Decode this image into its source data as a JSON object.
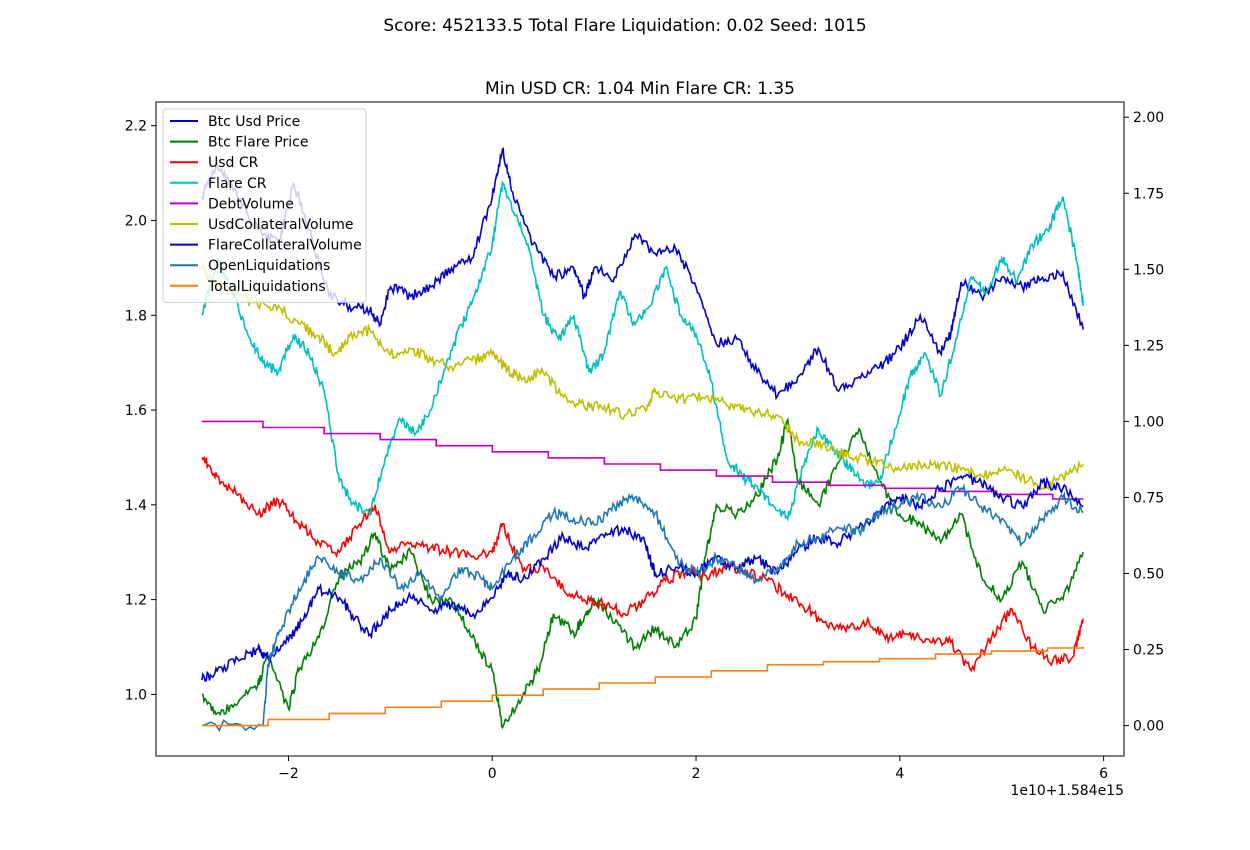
{
  "figure": {
    "suptitle": "Score: 452133.5 Total Flare Liquidation: 0.02 Seed: 1015"
  },
  "chart_data": {
    "type": "line",
    "title": "Min USD CR: 1.04 Min Flare CR: 1.35",
    "xlabel": "",
    "ylabel": "",
    "x_offset_label": "1e10+1.584e15",
    "x_ticks": [
      -2,
      0,
      2,
      4,
      6
    ],
    "x_range": [
      -3.3,
      6.2
    ],
    "left_axis": {
      "ylim": [
        0.87,
        2.25
      ],
      "ticks": [
        1.0,
        1.2,
        1.4,
        1.6,
        1.8,
        2.0,
        2.2
      ]
    },
    "right_axis": {
      "ylim": [
        -0.1,
        2.05
      ],
      "ticks": [
        0.0,
        0.25,
        0.5,
        0.75,
        1.0,
        1.25,
        1.5,
        1.75,
        2.0
      ]
    },
    "legend_position": "top-left",
    "grid": false,
    "series": [
      {
        "name": "Btc Usd Price",
        "axis": "left",
        "color": "#0000cc",
        "style": "noisy",
        "x": [
          -2.85,
          -2.7,
          -2.5,
          -2.3,
          -2.1,
          -1.95,
          -1.8,
          -1.6,
          -1.4,
          -1.2,
          -1.1,
          -1.0,
          -0.8,
          -0.6,
          -0.4,
          -0.2,
          0.0,
          0.1,
          0.2,
          0.4,
          0.6,
          0.8,
          0.9,
          1.0,
          1.2,
          1.4,
          1.6,
          1.8,
          2.0,
          2.2,
          2.4,
          2.6,
          2.8,
          3.0,
          3.2,
          3.4,
          3.6,
          3.8,
          4.0,
          4.2,
          4.4,
          4.5,
          4.6,
          4.8,
          5.0,
          5.2,
          5.4,
          5.6,
          5.8
        ],
        "y": [
          2.05,
          2.12,
          2.05,
          1.98,
          1.95,
          2.08,
          1.98,
          1.84,
          1.82,
          1.81,
          1.78,
          1.86,
          1.84,
          1.86,
          1.9,
          1.92,
          2.05,
          2.15,
          2.06,
          1.95,
          1.88,
          1.9,
          1.84,
          1.9,
          1.88,
          1.97,
          1.93,
          1.94,
          1.86,
          1.74,
          1.75,
          1.68,
          1.63,
          1.67,
          1.73,
          1.64,
          1.67,
          1.69,
          1.73,
          1.8,
          1.72,
          1.76,
          1.87,
          1.84,
          1.88,
          1.86,
          1.88,
          1.89,
          1.77
        ]
      },
      {
        "name": "Btc Flare Price",
        "axis": "left",
        "color": "#007f00",
        "style": "noisy",
        "x": [
          -2.85,
          -2.7,
          -2.5,
          -2.3,
          -2.2,
          -2.0,
          -1.9,
          -1.7,
          -1.5,
          -1.3,
          -1.15,
          -1.0,
          -0.8,
          -0.6,
          -0.4,
          -0.2,
          0.0,
          0.1,
          0.3,
          0.45,
          0.6,
          0.8,
          0.9,
          1.0,
          1.2,
          1.4,
          1.6,
          1.8,
          2.0,
          2.1,
          2.2,
          2.4,
          2.6,
          2.8,
          2.9,
          3.0,
          3.2,
          3.4,
          3.6,
          3.8,
          4.0,
          4.2,
          4.4,
          4.6,
          4.8,
          5.0,
          5.2,
          5.4,
          5.6,
          5.8
        ],
        "y": [
          1.0,
          0.96,
          0.98,
          1.02,
          1.08,
          0.97,
          1.05,
          1.12,
          1.25,
          1.28,
          1.34,
          1.26,
          1.3,
          1.2,
          1.2,
          1.12,
          1.05,
          0.93,
          1.0,
          1.05,
          1.17,
          1.13,
          1.16,
          1.2,
          1.15,
          1.1,
          1.14,
          1.1,
          1.16,
          1.3,
          1.4,
          1.38,
          1.42,
          1.5,
          1.58,
          1.45,
          1.4,
          1.49,
          1.56,
          1.45,
          1.38,
          1.36,
          1.32,
          1.38,
          1.25,
          1.2,
          1.28,
          1.18,
          1.2,
          1.3
        ]
      },
      {
        "name": "Usd CR",
        "axis": "left",
        "color": "#ff0000",
        "style": "noisy",
        "x": [
          -2.85,
          -2.7,
          -2.5,
          -2.3,
          -2.1,
          -1.9,
          -1.7,
          -1.5,
          -1.3,
          -1.15,
          -1.0,
          -0.8,
          -0.6,
          -0.4,
          -0.2,
          0.0,
          0.1,
          0.3,
          0.5,
          0.7,
          0.9,
          1.1,
          1.3,
          1.5,
          1.7,
          1.9,
          2.1,
          2.3,
          2.5,
          2.7,
          2.9,
          3.1,
          3.3,
          3.5,
          3.7,
          3.9,
          4.1,
          4.3,
          4.5,
          4.7,
          4.9,
          5.1,
          5.3,
          5.5,
          5.7,
          5.8
        ],
        "y": [
          1.5,
          1.46,
          1.42,
          1.38,
          1.41,
          1.36,
          1.32,
          1.3,
          1.36,
          1.4,
          1.3,
          1.32,
          1.31,
          1.3,
          1.29,
          1.3,
          1.36,
          1.26,
          1.27,
          1.22,
          1.2,
          1.19,
          1.17,
          1.2,
          1.24,
          1.26,
          1.25,
          1.27,
          1.26,
          1.24,
          1.21,
          1.18,
          1.14,
          1.14,
          1.15,
          1.12,
          1.13,
          1.11,
          1.11,
          1.05,
          1.12,
          1.18,
          1.1,
          1.07,
          1.08,
          1.16
        ]
      },
      {
        "name": "Flare CR",
        "axis": "left",
        "color": "#00bfbf",
        "style": "noisy",
        "x": [
          -2.85,
          -2.7,
          -2.55,
          -2.4,
          -2.25,
          -2.1,
          -1.95,
          -1.8,
          -1.65,
          -1.5,
          -1.35,
          -1.2,
          -1.05,
          -0.9,
          -0.75,
          -0.6,
          -0.45,
          -0.3,
          -0.15,
          0.0,
          0.1,
          0.2,
          0.35,
          0.5,
          0.65,
          0.8,
          0.95,
          1.1,
          1.25,
          1.4,
          1.55,
          1.7,
          1.85,
          2.0,
          2.15,
          2.3,
          2.45,
          2.6,
          2.75,
          2.9,
          3.05,
          3.2,
          3.35,
          3.5,
          3.65,
          3.8,
          3.95,
          4.1,
          4.25,
          4.4,
          4.55,
          4.7,
          4.85,
          5.0,
          5.15,
          5.3,
          5.45,
          5.6,
          5.75,
          5.8
        ],
        "y": [
          1.8,
          1.92,
          1.85,
          1.76,
          1.7,
          1.68,
          1.76,
          1.72,
          1.64,
          1.45,
          1.4,
          1.38,
          1.5,
          1.58,
          1.55,
          1.6,
          1.7,
          1.78,
          1.85,
          1.95,
          2.08,
          2.02,
          1.95,
          1.8,
          1.75,
          1.8,
          1.68,
          1.72,
          1.85,
          1.78,
          1.82,
          1.9,
          1.8,
          1.76,
          1.66,
          1.5,
          1.46,
          1.44,
          1.4,
          1.37,
          1.48,
          1.56,
          1.52,
          1.48,
          1.44,
          1.45,
          1.56,
          1.67,
          1.72,
          1.63,
          1.75,
          1.88,
          1.85,
          1.92,
          1.87,
          1.95,
          1.98,
          2.05,
          1.9,
          1.82
        ]
      },
      {
        "name": "DebtVolume",
        "axis": "right",
        "color": "#bf00bf",
        "style": "step",
        "x": [
          -2.85,
          -2.25,
          -1.65,
          -1.1,
          -0.55,
          0.0,
          0.55,
          1.1,
          1.65,
          2.2,
          2.75,
          3.3,
          3.85,
          4.4,
          4.95,
          5.5,
          5.8
        ],
        "y": [
          1.0,
          0.98,
          0.96,
          0.94,
          0.92,
          0.9,
          0.88,
          0.86,
          0.84,
          0.82,
          0.8,
          0.79,
          0.78,
          0.77,
          0.76,
          0.745,
          0.745
        ]
      },
      {
        "name": "UsdCollateralVolume",
        "axis": "right",
        "color": "#bfbf00",
        "style": "noisy",
        "x": [
          -2.85,
          -2.7,
          -2.5,
          -2.3,
          -2.1,
          -1.9,
          -1.7,
          -1.55,
          -1.4,
          -1.2,
          -1.0,
          -0.8,
          -0.6,
          -0.4,
          -0.2,
          0.0,
          0.15,
          0.3,
          0.5,
          0.7,
          0.9,
          1.1,
          1.3,
          1.5,
          1.6,
          1.8,
          2.0,
          2.2,
          2.4,
          2.6,
          2.8,
          3.0,
          3.2,
          3.4,
          3.6,
          3.8,
          4.0,
          4.2,
          4.4,
          4.6,
          4.8,
          5.0,
          5.2,
          5.4,
          5.6,
          5.8
        ],
        "y": [
          1.5,
          1.45,
          1.42,
          1.38,
          1.38,
          1.32,
          1.28,
          1.22,
          1.28,
          1.3,
          1.22,
          1.24,
          1.2,
          1.18,
          1.2,
          1.22,
          1.17,
          1.14,
          1.16,
          1.08,
          1.05,
          1.05,
          1.02,
          1.04,
          1.1,
          1.07,
          1.08,
          1.07,
          1.05,
          1.03,
          1.02,
          0.94,
          0.92,
          0.9,
          0.88,
          0.87,
          0.84,
          0.86,
          0.86,
          0.84,
          0.82,
          0.84,
          0.82,
          0.78,
          0.82,
          0.86
        ]
      },
      {
        "name": "FlareCollateralVolume",
        "axis": "right",
        "color": "#0000cc",
        "style": "noisy",
        "x": [
          -2.85,
          -2.7,
          -2.5,
          -2.3,
          -2.2,
          -2.0,
          -1.85,
          -1.7,
          -1.5,
          -1.35,
          -1.2,
          -1.0,
          -0.8,
          -0.6,
          -0.4,
          -0.2,
          0.0,
          0.15,
          0.3,
          0.5,
          0.7,
          0.9,
          1.1,
          1.3,
          1.5,
          1.6,
          1.8,
          2.0,
          2.2,
          2.4,
          2.6,
          2.8,
          3.0,
          3.2,
          3.4,
          3.6,
          3.8,
          4.0,
          4.2,
          4.4,
          4.6,
          4.8,
          5.0,
          5.2,
          5.4,
          5.6,
          5.8
        ],
        "y": [
          0.15,
          0.18,
          0.22,
          0.25,
          0.22,
          0.28,
          0.35,
          0.45,
          0.42,
          0.35,
          0.3,
          0.38,
          0.42,
          0.38,
          0.4,
          0.36,
          0.42,
          0.5,
          0.48,
          0.55,
          0.62,
          0.58,
          0.62,
          0.65,
          0.6,
          0.5,
          0.52,
          0.5,
          0.55,
          0.52,
          0.55,
          0.5,
          0.58,
          0.62,
          0.6,
          0.65,
          0.7,
          0.75,
          0.72,
          0.78,
          0.82,
          0.8,
          0.75,
          0.72,
          0.8,
          0.78,
          0.72
        ]
      },
      {
        "name": "OpenLiquidations",
        "axis": "right",
        "color": "#1f77b4",
        "style": "noisy",
        "x": [
          -2.85,
          -2.25,
          -2.2,
          -2.1,
          -1.9,
          -1.7,
          -1.5,
          -1.3,
          -1.1,
          -0.9,
          -0.7,
          -0.5,
          -0.3,
          -0.1,
          0.0,
          0.2,
          0.4,
          0.6,
          0.8,
          1.0,
          1.2,
          1.4,
          1.6,
          1.8,
          2.0,
          2.2,
          2.4,
          2.6,
          2.8,
          3.0,
          3.2,
          3.4,
          3.6,
          3.8,
          4.0,
          4.2,
          4.4,
          4.6,
          4.8,
          5.0,
          5.2,
          5.4,
          5.6,
          5.8
        ],
        "y": [
          0.0,
          0.0,
          0.2,
          0.3,
          0.45,
          0.55,
          0.5,
          0.48,
          0.55,
          0.45,
          0.5,
          0.42,
          0.52,
          0.48,
          0.45,
          0.55,
          0.62,
          0.7,
          0.68,
          0.66,
          0.72,
          0.75,
          0.7,
          0.55,
          0.5,
          0.55,
          0.52,
          0.48,
          0.52,
          0.6,
          0.62,
          0.65,
          0.64,
          0.7,
          0.72,
          0.75,
          0.72,
          0.78,
          0.72,
          0.68,
          0.6,
          0.68,
          0.75,
          0.7
        ]
      },
      {
        "name": "TotalLiquidations",
        "axis": "right",
        "color": "#ff7f0e",
        "style": "step",
        "x": [
          -2.85,
          -2.2,
          -1.6,
          -1.05,
          -0.5,
          0.0,
          0.5,
          1.05,
          1.6,
          2.15,
          2.7,
          3.25,
          3.8,
          4.35,
          4.9,
          5.45,
          5.8
        ],
        "y": [
          0.0,
          0.02,
          0.04,
          0.06,
          0.08,
          0.1,
          0.12,
          0.14,
          0.16,
          0.18,
          0.2,
          0.21,
          0.22,
          0.235,
          0.245,
          0.255,
          0.26
        ]
      }
    ]
  }
}
